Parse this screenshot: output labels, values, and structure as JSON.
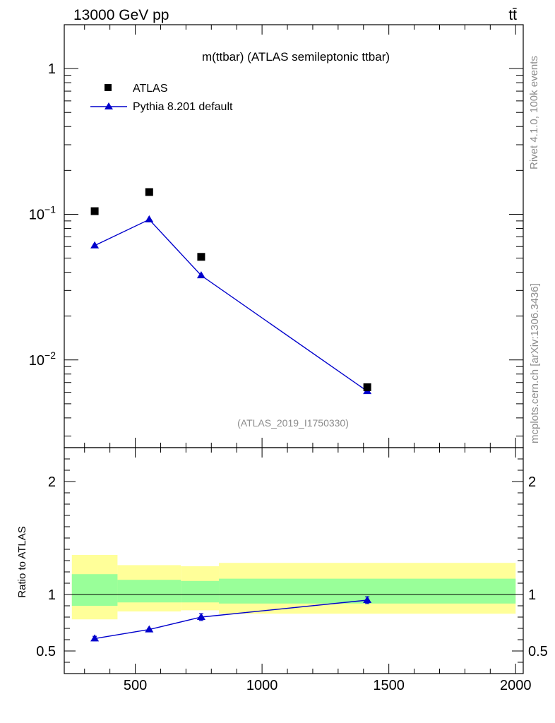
{
  "header": {
    "energy_label": "13000 GeV pp",
    "process_label": "tt̄"
  },
  "side_labels": {
    "rivet": "Rivet 4.1.0,  100k events",
    "source": "mcplots.cern.ch [arXiv:1306.3436]"
  },
  "watermark": "(ATLAS_2019_I1750330)",
  "chart_data": [
    {
      "type": "scatter",
      "title": "m(ttbar) (ATLAS semileptonic ttbar)",
      "xlabel": "",
      "ylabel": "",
      "yscale": "log",
      "xlim": [
        220,
        2030
      ],
      "ylim": [
        0.0025,
        2.0
      ],
      "ytick_labels": [
        {
          "value": 1,
          "base": "1",
          "exp": ""
        },
        {
          "value": 0.1,
          "base": "10",
          "exp": "−1"
        },
        {
          "value": 0.01,
          "base": "10",
          "exp": "−2"
        }
      ],
      "legend": [
        {
          "name": "ATLAS",
          "marker": "square",
          "color": "#000000"
        },
        {
          "name": "Pythia 8.201 default",
          "marker": "triangle",
          "color": "#0000cc"
        }
      ],
      "legend_position": "top-left",
      "series": [
        {
          "name": "ATLAS",
          "x": [
            340,
            555,
            760,
            1415
          ],
          "y": [
            0.105,
            0.142,
            0.051,
            0.0065
          ]
        },
        {
          "name": "Pythia 8.201 default",
          "x": [
            340,
            555,
            760,
            1415
          ],
          "y": [
            0.061,
            0.092,
            0.038,
            0.0061
          ]
        }
      ]
    },
    {
      "type": "line",
      "title": "",
      "xlabel": "",
      "ylabel": "Ratio to ATLAS",
      "xlim": [
        220,
        2030
      ],
      "ylim": [
        0.3,
        2.3
      ],
      "xticks": [
        500,
        1000,
        1500,
        2000
      ],
      "xtick_labels": [
        "500",
        "1000",
        "1500",
        "2000"
      ],
      "yticks": [
        0.5,
        1,
        2
      ],
      "ytick_labels": [
        "0.5",
        "1",
        "2"
      ],
      "bands": [
        {
          "x0": 250,
          "x1": 430,
          "yellow": [
            0.78,
            1.35
          ],
          "green": [
            0.9,
            1.18
          ]
        },
        {
          "x0": 430,
          "x1": 680,
          "yellow": [
            0.85,
            1.26
          ],
          "green": [
            0.93,
            1.13
          ]
        },
        {
          "x0": 680,
          "x1": 830,
          "yellow": [
            0.86,
            1.25
          ],
          "green": [
            0.93,
            1.12
          ]
        },
        {
          "x0": 830,
          "x1": 2000,
          "yellow": [
            0.83,
            1.28
          ],
          "green": [
            0.92,
            1.14
          ]
        }
      ],
      "reference_line": 1,
      "series": [
        {
          "name": "Pythia 8.201 default",
          "x": [
            340,
            555,
            760,
            1415
          ],
          "y": [
            0.61,
            0.69,
            0.8,
            0.95
          ],
          "yerr": [
            0.02,
            0.01,
            0.03,
            0.03
          ]
        }
      ]
    }
  ]
}
